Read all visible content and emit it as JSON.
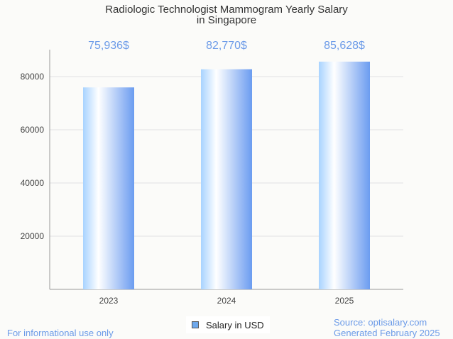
{
  "chart_data": {
    "type": "bar",
    "title": [
      "Radiologic Technologist Mammogram Yearly Salary",
      "in Singapore"
    ],
    "categories": [
      "2023",
      "2024",
      "2025"
    ],
    "values": [
      75936,
      82770,
      85628
    ],
    "data_labels": [
      "75,936$",
      "82,770$",
      "85,628$"
    ],
    "yticks": [
      20000,
      40000,
      60000,
      80000
    ],
    "ylim": [
      0,
      90000
    ],
    "xlabel": "",
    "ylabel": "",
    "grid": true,
    "legend": {
      "label": "Salary in USD",
      "placement": "bottom-center"
    },
    "colors": {
      "bar_light": "#b3d9ff",
      "bar_mid": "#ffffff",
      "bar_dark": "#6b9cf0",
      "label": "#6c9be8"
    }
  },
  "footer": {
    "left": "For informational use only",
    "source": "Source: optisalary.com",
    "generated": "Generated February 2025"
  }
}
